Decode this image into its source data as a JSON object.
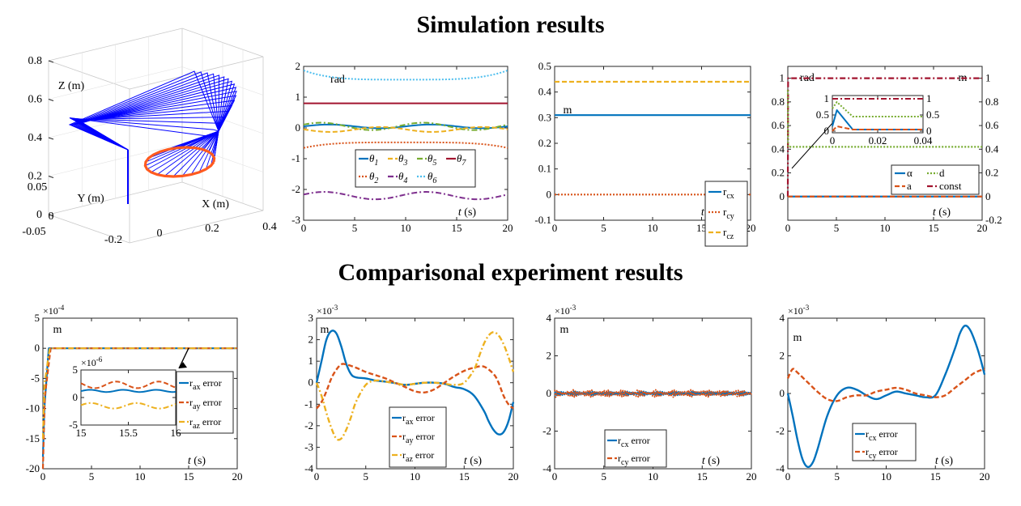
{
  "headings": {
    "simulation": "Simulation results",
    "comparison": "Comparisonal experiment results"
  },
  "colors": {
    "blue": "#0072BD",
    "orange": "#D95319",
    "yellow": "#EDB120",
    "purple": "#7E2F8E",
    "green": "#77AC30",
    "cyan": "#4DBEEE",
    "darkred": "#A2142F",
    "arm": "#0000FF",
    "traj": "#FF5A1F"
  },
  "chart_data": [
    {
      "id": "arm3d",
      "type": "3d-line",
      "title": "",
      "axis_labels": {
        "x": "X (m)",
        "y": "Y (m)",
        "z": "Z (m)"
      },
      "x_ticks": [
        "-0.2",
        "0",
        "0.2",
        "0.4"
      ],
      "y_ticks": [
        "0.05",
        "0",
        "-0.05"
      ],
      "z_ticks": [
        "0",
        "0.2",
        "0.4",
        "0.6",
        "0.8"
      ],
      "ranges": {
        "x": [
          -0.25,
          0.4
        ],
        "y": [
          -0.06,
          0.06
        ],
        "z": [
          0,
          0.8
        ]
      },
      "series": [
        {
          "color": "#0000FF"
        },
        {
          "color": "#FF5A1F"
        }
      ]
    },
    {
      "id": "joint_angles",
      "type": "line",
      "unit_label": "rad",
      "xlabel_italic": "t",
      "xlabel_unit": "(s)",
      "xlim": [
        0,
        20
      ],
      "ylim": [
        -3,
        2
      ],
      "x_ticks": [
        "0",
        "5",
        "10",
        "15",
        "20"
      ],
      "y_ticks": [
        "-3",
        "-2",
        "-1",
        "0",
        "1",
        "2"
      ],
      "legend": [
        {
          "sym": "θ",
          "sub": "1",
          "color": "#0072BD",
          "dash": ""
        },
        {
          "sym": "θ",
          "sub": "3",
          "color": "#EDB120",
          "dash": "6,3"
        },
        {
          "sym": "θ",
          "sub": "5",
          "color": "#77AC30",
          "dash": "7,3,2,3"
        },
        {
          "sym": "θ",
          "sub": "7",
          "color": "#A2142F",
          "dash": ""
        },
        {
          "sym": "θ",
          "sub": "2",
          "color": "#D95319",
          "dash": "2,2"
        },
        {
          "sym": "θ",
          "sub": "4",
          "color": "#7E2F8E",
          "dash": "7,3,2,3"
        },
        {
          "sym": "θ",
          "sub": "6",
          "color": "#4DBEEE",
          "dash": "2,2"
        }
      ],
      "series": [
        {
          "color": "#4DBEEE",
          "dash": "2,2",
          "base": 1.57,
          "shape": "bowl",
          "amp": 0.5
        },
        {
          "color": "#A2142F",
          "dash": "",
          "base": 0.8,
          "shape": "flat",
          "amp": 0
        },
        {
          "color": "#0072BD",
          "dash": "",
          "base": 0.05,
          "shape": "sin",
          "amp": 0.06,
          "cycles": 2,
          "phase": 0
        },
        {
          "color": "#77AC30",
          "dash": "7,3,2,3",
          "base": 0.05,
          "shape": "sin",
          "amp": 0.12,
          "cycles": 2,
          "phase": 0.5
        },
        {
          "color": "#EDB120",
          "dash": "6,3",
          "base": -0.05,
          "shape": "sin",
          "amp": 0.08,
          "cycles": 2,
          "phase": 3.1
        },
        {
          "color": "#D95319",
          "dash": "2,2",
          "base": -0.5,
          "shape": "bowl",
          "amp": -0.3
        },
        {
          "color": "#7E2F8E",
          "dash": "7,3,2,3",
          "base": -2.2,
          "shape": "sin",
          "amp": 0.12,
          "cycles": 2,
          "phase": 0.3
        }
      ]
    },
    {
      "id": "rc",
      "type": "line",
      "unit_label": "m",
      "xlabel_italic": "t",
      "xlabel_unit": "(s)",
      "xlim": [
        0,
        20
      ],
      "ylim": [
        -0.1,
        0.5
      ],
      "x_ticks": [
        "0",
        "5",
        "10",
        "15",
        "20"
      ],
      "y_ticks": [
        "-0.1",
        "0",
        "0.1",
        "0.2",
        "0.3",
        "0.4",
        "0.5"
      ],
      "legend": [
        {
          "sym": "r",
          "sub": "cx",
          "color": "#0072BD",
          "dash": ""
        },
        {
          "sym": "r",
          "sub": "cy",
          "color": "#D95319",
          "dash": "2,2"
        },
        {
          "sym": "r",
          "sub": "cz",
          "color": "#EDB120",
          "dash": "6,3"
        }
      ],
      "series": [
        {
          "name": "r_cx",
          "color": "#0072BD",
          "dash": "",
          "value": 0.31
        },
        {
          "name": "r_cy",
          "color": "#D95319",
          "dash": "2,2",
          "value": 0.0
        },
        {
          "name": "r_cz",
          "color": "#EDB120",
          "dash": "6,3",
          "value": 0.44
        }
      ]
    },
    {
      "id": "params",
      "type": "line",
      "unit_label_left": "rad",
      "unit_label_right": "m",
      "xlabel_italic": "t",
      "xlabel_unit": "(s)",
      "xlim": [
        0,
        20
      ],
      "ylim": [
        -0.2,
        1.1
      ],
      "x_ticks": [
        "0",
        "5",
        "10",
        "15",
        "20"
      ],
      "y_ticks_left": [
        "0",
        "0.2",
        "0.4",
        "0.6",
        "0.8",
        "1"
      ],
      "y_ticks_right": [
        "-0.2",
        "0",
        "0.2",
        "0.4",
        "0.6",
        "0.8",
        "1"
      ],
      "legend": [
        {
          "label": "α",
          "color": "#0072BD",
          "dash": ""
        },
        {
          "label": "d",
          "color": "#77AC30",
          "dash": "2,2"
        },
        {
          "label": "a",
          "color": "#D95319",
          "dash": "6,3"
        },
        {
          "label": "const",
          "color": "#A2142F",
          "dash": "7,3,2,3"
        }
      ],
      "series": [
        {
          "name": "const",
          "color": "#A2142F",
          "dash": "7,3,2,3",
          "value": 1.0
        },
        {
          "name": "d",
          "color": "#77AC30",
          "dash": "2,2",
          "value": 0.42
        },
        {
          "name": "α",
          "color": "#0072BD",
          "dash": "",
          "value": 0.0
        },
        {
          "name": "a",
          "color": "#D95319",
          "dash": "6,3",
          "value": 0.0
        }
      ],
      "inset": {
        "xlim": [
          0,
          0.04
        ],
        "ylim": [
          -0.05,
          1.1
        ],
        "x_ticks": [
          "0",
          "0.02",
          "0.04"
        ],
        "y_ticks_left": [
          "0",
          "0.5",
          "1"
        ],
        "y_ticks_right": [
          "0",
          "0.5",
          "1"
        ]
      }
    },
    {
      "id": "ra_err_a",
      "type": "line",
      "unit_label": "m",
      "exponent": "-4",
      "xlabel_italic": "t",
      "xlabel_unit": "(s)",
      "xlim": [
        0,
        20
      ],
      "ylim": [
        -20,
        5
      ],
      "x_ticks": [
        "0",
        "5",
        "10",
        "15",
        "20"
      ],
      "y_ticks": [
        "-20",
        "-15",
        "-10",
        "-5",
        "0",
        "5"
      ],
      "legend": [
        {
          "sym": "r",
          "sub": "ax",
          "suffix": " error",
          "color": "#0072BD",
          "dash": ""
        },
        {
          "sym": "r",
          "sub": "ay",
          "suffix": " error",
          "color": "#D95319",
          "dash": "6,3"
        },
        {
          "sym": "r",
          "sub": "az",
          "suffix": " error",
          "color": "#EDB120",
          "dash": "7,3,2,3"
        }
      ],
      "inset": {
        "exponent": "-6",
        "xlim": [
          15,
          16
        ],
        "ylim": [
          -5,
          5
        ],
        "x_ticks": [
          "15",
          "15.5",
          "16"
        ],
        "y_ticks": [
          "-5",
          "0",
          "5"
        ]
      }
    },
    {
      "id": "ra_err_b",
      "type": "line",
      "unit_label": "m",
      "exponent": "-3",
      "xlabel_italic": "t",
      "xlabel_unit": "(s)",
      "xlim": [
        0,
        20
      ],
      "ylim": [
        -4,
        3
      ],
      "x_ticks": [
        "0",
        "5",
        "10",
        "15",
        "20"
      ],
      "y_ticks": [
        "-4",
        "-3",
        "-2",
        "-1",
        "0",
        "1",
        "2",
        "3"
      ],
      "legend": [
        {
          "sym": "r",
          "sub": "ax",
          "suffix": " error",
          "color": "#0072BD",
          "dash": ""
        },
        {
          "sym": "r",
          "sub": "ay",
          "suffix": " error",
          "color": "#D95319",
          "dash": "6,3"
        },
        {
          "sym": "r",
          "sub": "az",
          "suffix": " error",
          "color": "#EDB120",
          "dash": "7,3,2,3"
        }
      ],
      "series": [
        {
          "name": "r_ax error",
          "color": "#0072BD",
          "dash": "",
          "x": [
            0,
            0.5,
            1,
            1.5,
            2,
            2.5,
            3,
            3.5,
            4,
            5,
            6,
            7,
            8,
            9,
            10,
            11,
            12,
            13,
            14,
            15,
            16,
            17,
            17.5,
            18,
            18.5,
            19,
            19.5,
            20
          ],
          "y": [
            0,
            1.0,
            2.0,
            2.4,
            2.3,
            1.7,
            0.9,
            0.4,
            0.25,
            0.2,
            0.1,
            0.05,
            -0.02,
            -0.1,
            -0.05,
            0,
            0,
            -0.05,
            -0.2,
            -0.3,
            -0.6,
            -1.3,
            -1.8,
            -2.2,
            -2.4,
            -2.3,
            -1.8,
            -0.9
          ]
        },
        {
          "name": "r_ay error",
          "color": "#D95319",
          "dash": "6,3",
          "x": [
            0,
            0.5,
            1,
            1.5,
            2,
            2.5,
            3,
            4,
            5,
            6,
            7,
            8,
            9,
            10,
            11,
            12,
            13,
            14,
            15,
            16,
            17,
            18,
            18.5,
            19,
            19.5,
            20
          ],
          "y": [
            -1.2,
            -0.9,
            -0.4,
            0.2,
            0.6,
            0.85,
            0.85,
            0.7,
            0.5,
            0.35,
            0.2,
            0,
            -0.2,
            -0.4,
            -0.45,
            -0.3,
            0,
            0.3,
            0.55,
            0.7,
            0.75,
            0.4,
            0,
            -0.6,
            -1.0,
            -1.2
          ]
        },
        {
          "name": "r_az error",
          "color": "#EDB120",
          "dash": "7,3,2,3",
          "x": [
            0,
            0.5,
            1,
            1.5,
            2,
            2.5,
            3,
            3.5,
            4,
            5,
            6,
            7,
            8,
            9,
            10,
            11,
            12,
            13,
            14,
            15,
            16,
            16.5,
            17,
            17.5,
            18,
            18.5,
            19,
            19.5,
            20
          ],
          "y": [
            0,
            -0.6,
            -1.4,
            -2.1,
            -2.6,
            -2.6,
            -2.2,
            -1.6,
            -0.9,
            -0.1,
            0.1,
            0.05,
            -0.02,
            -0.1,
            -0.05,
            0,
            0,
            -0.05,
            -0.1,
            0.0,
            0.6,
            1.2,
            1.8,
            2.2,
            2.35,
            2.2,
            1.8,
            1.2,
            0.5
          ]
        }
      ]
    },
    {
      "id": "rc_err_a",
      "type": "line",
      "unit_label": "m",
      "exponent": "-3",
      "xlabel_italic": "t",
      "xlabel_unit": "(s)",
      "xlim": [
        0,
        20
      ],
      "ylim": [
        -4,
        4
      ],
      "x_ticks": [
        "0",
        "5",
        "10",
        "15",
        "20"
      ],
      "y_ticks": [
        "-4",
        "-2",
        "0",
        "2",
        "4"
      ],
      "legend": [
        {
          "sym": "r",
          "sub": "cx",
          "suffix": " error",
          "color": "#0072BD",
          "dash": ""
        },
        {
          "sym": "r",
          "sub": "cy",
          "suffix": " error",
          "color": "#D95319",
          "dash": "6,3"
        }
      ],
      "series": [
        {
          "name": "r_cx error",
          "color": "#0072BD",
          "dash": "",
          "noise_amp": 0.12
        },
        {
          "name": "r_cy error",
          "color": "#D95319",
          "dash": "2,2",
          "noise_amp": 0.2
        }
      ]
    },
    {
      "id": "rc_err_b",
      "type": "line",
      "unit_label": "m",
      "exponent": "-3",
      "xlabel_italic": "t",
      "xlabel_unit": "(s)",
      "xlim": [
        0,
        20
      ],
      "ylim": [
        -4,
        4
      ],
      "x_ticks": [
        "0",
        "5",
        "10",
        "15",
        "20"
      ],
      "y_ticks": [
        "-4",
        "-2",
        "0",
        "2",
        "4"
      ],
      "legend": [
        {
          "sym": "r",
          "sub": "cx",
          "suffix": " error",
          "color": "#0072BD",
          "dash": ""
        },
        {
          "sym": "r",
          "sub": "cy",
          "suffix": " error",
          "color": "#D95319",
          "dash": "6,3"
        }
      ],
      "series": [
        {
          "name": "r_cx error",
          "color": "#0072BD",
          "dash": "",
          "x": [
            0,
            0.5,
            1,
            1.5,
            2,
            2.5,
            3,
            4,
            5,
            6,
            7,
            8,
            9,
            10,
            11,
            12,
            13,
            14,
            15,
            16,
            17,
            17.5,
            18,
            18.5,
            19,
            19.5,
            20
          ],
          "y": [
            0,
            -1.2,
            -2.5,
            -3.5,
            -3.9,
            -3.7,
            -3.0,
            -1.2,
            -0.1,
            0.3,
            0.2,
            -0.1,
            -0.3,
            -0.1,
            0.1,
            0.0,
            -0.1,
            -0.2,
            -0.1,
            1.0,
            2.4,
            3.2,
            3.6,
            3.4,
            2.8,
            2.0,
            1.0
          ]
        },
        {
          "name": "r_cy error",
          "color": "#D95319",
          "dash": "6,3",
          "x": [
            0,
            0.5,
            1,
            2,
            3,
            4,
            5,
            6,
            7,
            8,
            9,
            10,
            11,
            12,
            13,
            14,
            15,
            16,
            17,
            18,
            19,
            20
          ],
          "y": [
            0.8,
            1.3,
            1.1,
            0.6,
            0.1,
            -0.3,
            -0.4,
            -0.2,
            -0.1,
            -0.1,
            0.1,
            0.2,
            0.3,
            0.2,
            0.0,
            -0.1,
            -0.2,
            -0.1,
            0.3,
            0.7,
            1.1,
            1.3
          ]
        }
      ]
    }
  ]
}
